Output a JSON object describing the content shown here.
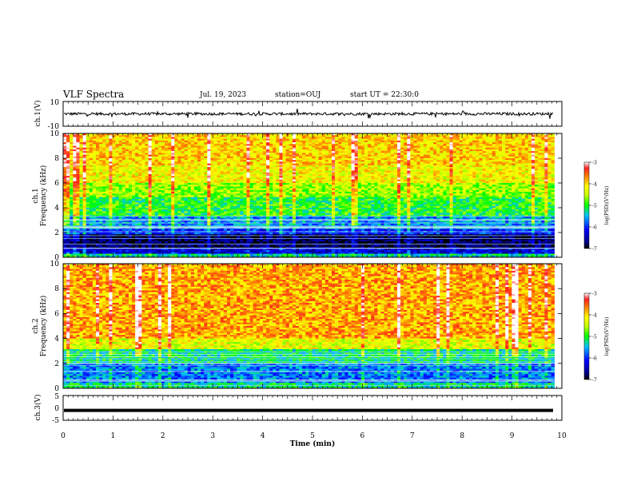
{
  "header": {
    "title": "VLF Spectra",
    "date": "Jul. 19, 2023",
    "station": "station=OUJ",
    "start": "start UT = 22:30:0"
  },
  "chart_data": [
    {
      "type": "line",
      "panel": "ch1-waveform",
      "ylabel": "ch.1(V)",
      "ylim": [
        -10,
        10
      ],
      "yticks": [
        "10",
        "-10"
      ],
      "series": [
        {
          "color": "#000000",
          "level": 0,
          "note_amplitude": 1.5
        }
      ],
      "xlim": [
        0,
        10
      ]
    },
    {
      "type": "heatmap",
      "panel": "ch1-spectrogram",
      "ylabel": "ch.1 Frequency (kHz)",
      "ylabel_lines": [
        "ch.1",
        "Frequency (kHz)"
      ],
      "ylim": [
        0,
        10
      ],
      "yticks": [
        "0",
        "2",
        "4",
        "6",
        "8",
        "10"
      ],
      "xlim": [
        0,
        9.85
      ],
      "colorbar": {
        "label": "log(PSD)(V²/Hz)",
        "range": [
          -7,
          -3
        ],
        "ticks": [
          "-3",
          "-4",
          "-5",
          "-6",
          "-7"
        ]
      },
      "bands": [
        {
          "f_from": 0,
          "f_to": 0.3,
          "level": -5.3
        },
        {
          "f_from": 0.3,
          "f_to": 0.7,
          "level": -6.3
        },
        {
          "f_from": 0.7,
          "f_to": 1.8,
          "level": -6.8
        },
        {
          "f_from": 1.8,
          "f_to": 2.3,
          "level": -6.0
        },
        {
          "f_from": 2.3,
          "f_to": 3.3,
          "level": -5.6
        },
        {
          "f_from": 3.3,
          "f_to": 4.8,
          "level": -5.0
        },
        {
          "f_from": 4.8,
          "f_to": 6.0,
          "level": -4.6
        },
        {
          "f_from": 6.0,
          "f_to": 7.5,
          "level": -4.2
        },
        {
          "f_from": 7.5,
          "f_to": 10.0,
          "level": -4.0
        }
      ]
    },
    {
      "type": "heatmap",
      "panel": "ch2-spectrogram",
      "ylabel": "ch.2 Frequency (kHz)",
      "ylabel_lines": [
        "ch.2",
        "Frequency (kHz)"
      ],
      "ylim": [
        0,
        10
      ],
      "yticks": [
        "0",
        "2",
        "4",
        "6",
        "8",
        "10"
      ],
      "xlim": [
        0,
        9.85
      ],
      "colorbar": {
        "label": "log(PSD)(V²/Hz)",
        "range": [
          -7,
          -3
        ],
        "ticks": [
          "-3",
          "-4",
          "-5",
          "-6",
          "-7"
        ]
      },
      "bands": [
        {
          "f_from": 0,
          "f_to": 0.5,
          "level": -5.2
        },
        {
          "f_from": 0.5,
          "f_to": 2.0,
          "level": -5.7
        },
        {
          "f_from": 2.0,
          "f_to": 3.2,
          "level": -5.2
        },
        {
          "f_from": 3.2,
          "f_to": 4.0,
          "level": -4.3
        },
        {
          "f_from": 4.0,
          "f_to": 10.0,
          "level": -3.8
        }
      ]
    },
    {
      "type": "line",
      "panel": "ch3-waveform",
      "ylabel": "ch.3(V)",
      "ylim": [
        -5,
        5
      ],
      "yticks": [
        "5",
        "0",
        "-5"
      ],
      "series": [
        {
          "color": "#000000",
          "level": -1.0
        }
      ],
      "xlim": [
        0,
        10
      ]
    }
  ],
  "xaxis": {
    "label": "Time (min)",
    "ticks": [
      "0",
      "1",
      "2",
      "3",
      "4",
      "5",
      "6",
      "7",
      "8",
      "9",
      "10"
    ]
  }
}
